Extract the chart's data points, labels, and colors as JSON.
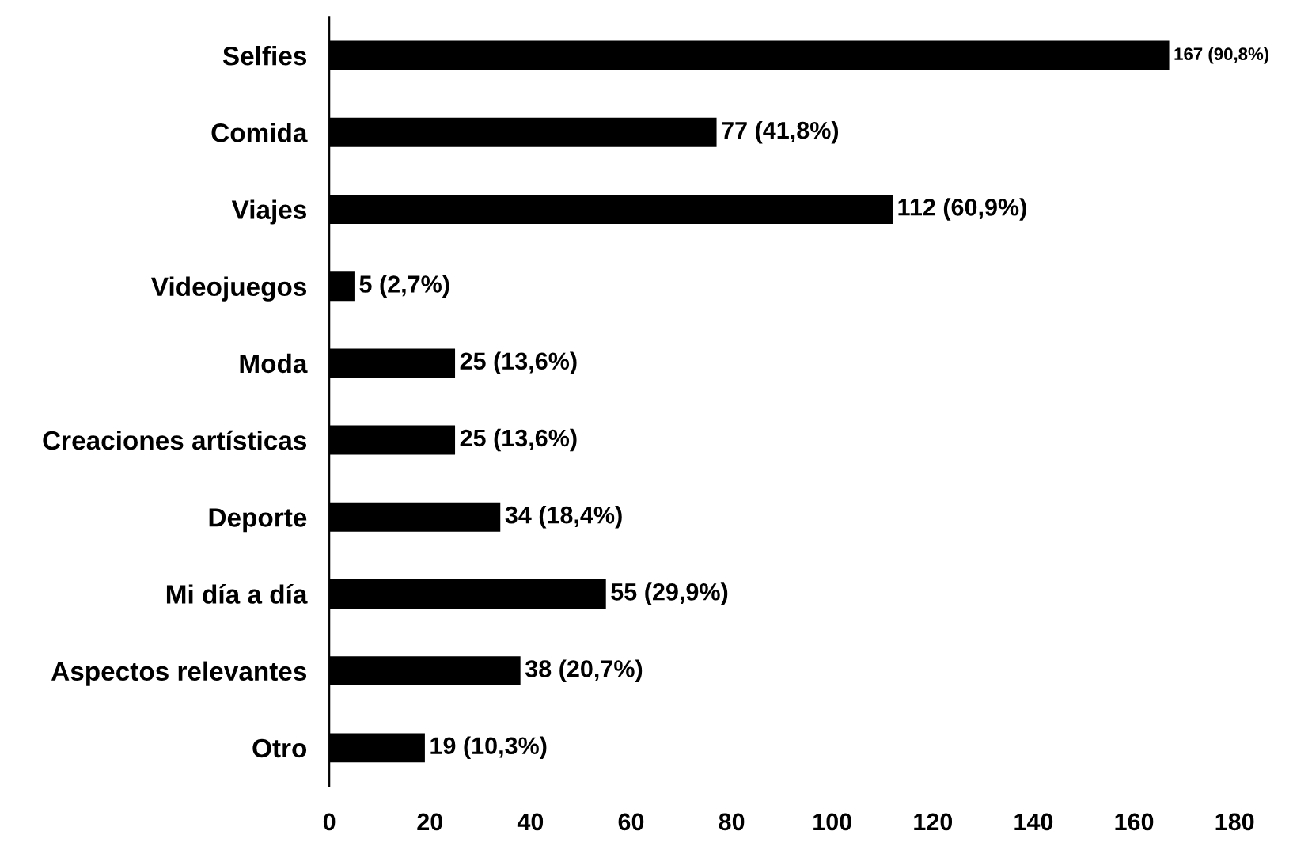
{
  "chart_data": {
    "type": "bar",
    "orientation": "horizontal",
    "categories": [
      "Selfies",
      "Comida",
      "Viajes",
      "Videojuegos",
      "Moda",
      "Creaciones artísticas",
      "Deporte",
      "Mi día a día",
      "Aspectos relevantes",
      "Otro"
    ],
    "values": [
      167,
      77,
      112,
      5,
      25,
      25,
      34,
      55,
      38,
      19
    ],
    "value_labels": [
      "167 (90,8%)",
      "77 (41,8%)",
      "112 (60,9%)",
      "5 (2,7%)",
      "25 (13,6%)",
      "25 (13,6%)",
      "34 (18,4%)",
      "55 (29,9%)",
      "38 (20,7%)",
      "19 (10,3%)"
    ],
    "color": "#000000",
    "xlim": [
      0,
      180
    ],
    "xticks": [
      0,
      20,
      40,
      60,
      80,
      100,
      120,
      140,
      160,
      180
    ],
    "grid": false
  }
}
